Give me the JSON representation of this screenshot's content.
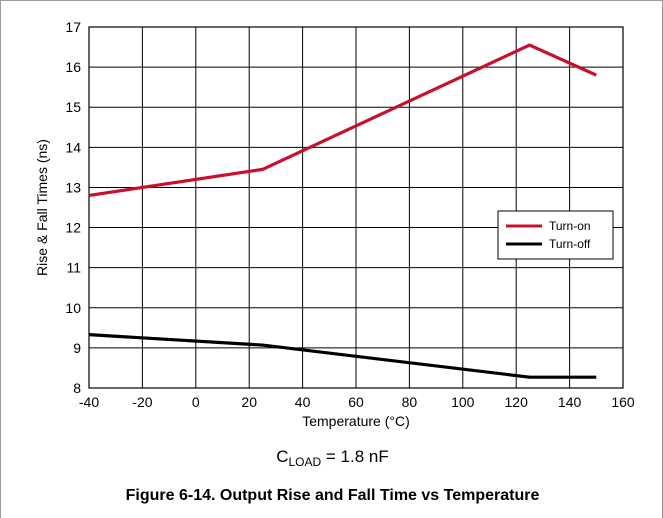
{
  "chart_data": {
    "type": "line",
    "title": "",
    "xlabel": "Temperature (°C)",
    "ylabel": "Rise & Fall Times (ns)",
    "xlim": [
      -40,
      160
    ],
    "ylim": [
      8,
      17
    ],
    "xticks": [
      "-40",
      "-20",
      "0",
      "20",
      "40",
      "60",
      "80",
      "100",
      "120",
      "140",
      "160"
    ],
    "yticks": [
      "8",
      "9",
      "10",
      "11",
      "12",
      "13",
      "14",
      "15",
      "16",
      "17"
    ],
    "grid": true,
    "legend_position": "right",
    "series": [
      {
        "name": "Turn-on",
        "color": "#c8102e",
        "x": [
          -40,
          25,
          125,
          150
        ],
        "y": [
          12.8,
          13.45,
          16.55,
          15.8
        ]
      },
      {
        "name": "Turn-off",
        "color": "#000000",
        "x": [
          -40,
          25,
          125,
          150
        ],
        "y": [
          9.33,
          9.07,
          8.27,
          8.27
        ]
      }
    ]
  },
  "condition": {
    "prefix": "C",
    "subscript": "LOAD",
    "suffix": " = 1.8 nF"
  },
  "caption": "Figure 6-14. Output Rise and Fall Time vs Temperature"
}
